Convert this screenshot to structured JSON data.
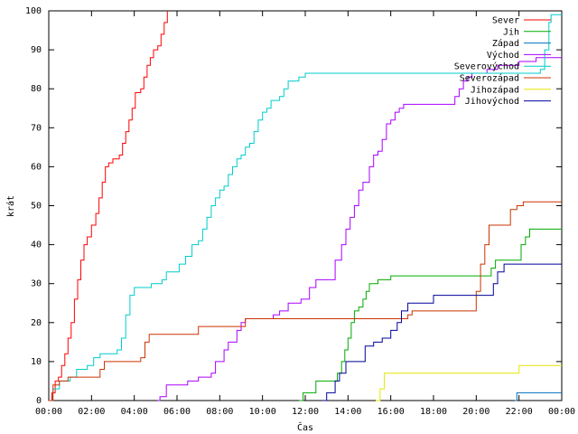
{
  "chart_data": {
    "type": "line",
    "title": "",
    "xlabel": "Čas",
    "ylabel": "krát",
    "xlim": [
      "00:00",
      "24:00"
    ],
    "ylim": [
      0,
      100
    ],
    "x_ticks": [
      "00:00",
      "02:00",
      "04:00",
      "06:00",
      "08:00",
      "10:00",
      "12:00",
      "14:00",
      "16:00",
      "18:00",
      "20:00",
      "22:00",
      "00:00"
    ],
    "y_ticks": [
      0,
      10,
      20,
      30,
      40,
      50,
      60,
      70,
      80,
      90,
      100
    ],
    "grid": false,
    "legend_position": "top-right",
    "series": [
      {
        "name": "Sever",
        "color": "#ff0000",
        "points": [
          [
            0.0,
            0
          ],
          [
            0.15,
            2
          ],
          [
            0.3,
            5
          ],
          [
            0.45,
            6
          ],
          [
            0.6,
            9
          ],
          [
            0.75,
            12
          ],
          [
            0.9,
            16
          ],
          [
            1.05,
            20
          ],
          [
            1.2,
            26
          ],
          [
            1.35,
            31
          ],
          [
            1.5,
            36
          ],
          [
            1.65,
            40
          ],
          [
            1.8,
            42
          ],
          [
            2.0,
            45
          ],
          [
            2.2,
            48
          ],
          [
            2.35,
            52
          ],
          [
            2.5,
            56
          ],
          [
            2.65,
            60
          ],
          [
            2.8,
            61
          ],
          [
            3.0,
            62
          ],
          [
            3.3,
            63
          ],
          [
            3.45,
            66
          ],
          [
            3.6,
            69
          ],
          [
            3.75,
            72
          ],
          [
            3.9,
            75
          ],
          [
            4.05,
            79
          ],
          [
            4.3,
            80
          ],
          [
            4.45,
            83
          ],
          [
            4.6,
            86
          ],
          [
            4.75,
            88
          ],
          [
            4.9,
            90
          ],
          [
            5.1,
            91
          ],
          [
            5.25,
            94
          ],
          [
            5.4,
            97
          ],
          [
            5.55,
            100
          ]
        ]
      },
      {
        "name": "Jih",
        "color": "#00aa00",
        "points": [
          [
            11.7,
            0
          ],
          [
            11.9,
            2
          ],
          [
            12.3,
            2
          ],
          [
            12.5,
            5
          ],
          [
            13.3,
            5
          ],
          [
            13.5,
            7
          ],
          [
            13.7,
            10
          ],
          [
            13.85,
            13
          ],
          [
            14.0,
            16
          ],
          [
            14.15,
            20
          ],
          [
            14.3,
            23
          ],
          [
            14.5,
            24
          ],
          [
            14.7,
            26
          ],
          [
            14.85,
            28
          ],
          [
            15.0,
            30
          ],
          [
            15.4,
            31
          ],
          [
            15.7,
            31
          ],
          [
            16.0,
            32
          ],
          [
            20.5,
            32
          ],
          [
            20.7,
            34
          ],
          [
            20.9,
            36
          ],
          [
            21.9,
            36
          ],
          [
            22.1,
            40
          ],
          [
            22.3,
            42
          ],
          [
            22.5,
            44
          ],
          [
            24.0,
            44
          ]
        ]
      },
      {
        "name": "Západ",
        "color": "#0070c0",
        "points": [
          [
            21.8,
            0
          ],
          [
            21.9,
            2
          ],
          [
            24.0,
            2
          ]
        ]
      },
      {
        "name": "Východ",
        "color": "#aa00ff",
        "points": [
          [
            5.1,
            0
          ],
          [
            5.2,
            1
          ],
          [
            5.5,
            4
          ],
          [
            6.5,
            5
          ],
          [
            7.0,
            6
          ],
          [
            7.6,
            7
          ],
          [
            7.8,
            10
          ],
          [
            8.2,
            13
          ],
          [
            8.4,
            15
          ],
          [
            8.8,
            18
          ],
          [
            9.0,
            20
          ],
          [
            9.2,
            21
          ],
          [
            10.5,
            22
          ],
          [
            10.8,
            23
          ],
          [
            11.2,
            25
          ],
          [
            11.8,
            26
          ],
          [
            12.2,
            29
          ],
          [
            12.5,
            31
          ],
          [
            13.2,
            31
          ],
          [
            13.4,
            36
          ],
          [
            13.7,
            40
          ],
          [
            13.9,
            44
          ],
          [
            14.1,
            47
          ],
          [
            14.3,
            50
          ],
          [
            14.5,
            54
          ],
          [
            14.7,
            56
          ],
          [
            15.0,
            60
          ],
          [
            15.2,
            63
          ],
          [
            15.4,
            64
          ],
          [
            15.6,
            67
          ],
          [
            15.8,
            71
          ],
          [
            16.0,
            72
          ],
          [
            16.2,
            74
          ],
          [
            16.4,
            75
          ],
          [
            16.6,
            76
          ],
          [
            18.8,
            76
          ],
          [
            19.0,
            78
          ],
          [
            19.2,
            80
          ],
          [
            19.4,
            82
          ],
          [
            19.6,
            83
          ],
          [
            19.8,
            84
          ],
          [
            20.5,
            85
          ],
          [
            21.0,
            86
          ],
          [
            22.0,
            87
          ],
          [
            22.8,
            88
          ],
          [
            24.0,
            88
          ]
        ]
      },
      {
        "name": "Severovýchod",
        "color": "#00cccc",
        "points": [
          [
            0.0,
            0
          ],
          [
            0.2,
            3
          ],
          [
            0.5,
            5
          ],
          [
            1.0,
            6
          ],
          [
            1.3,
            8
          ],
          [
            1.8,
            9
          ],
          [
            2.1,
            11
          ],
          [
            2.4,
            12
          ],
          [
            3.2,
            13
          ],
          [
            3.4,
            16
          ],
          [
            3.6,
            22
          ],
          [
            3.8,
            27
          ],
          [
            4.0,
            29
          ],
          [
            4.8,
            30
          ],
          [
            5.3,
            31
          ],
          [
            5.5,
            33
          ],
          [
            5.8,
            33
          ],
          [
            6.1,
            35
          ],
          [
            6.4,
            37
          ],
          [
            6.7,
            40
          ],
          [
            7.0,
            41
          ],
          [
            7.2,
            44
          ],
          [
            7.4,
            47
          ],
          [
            7.6,
            50
          ],
          [
            7.8,
            52
          ],
          [
            8.0,
            54
          ],
          [
            8.2,
            55
          ],
          [
            8.4,
            58
          ],
          [
            8.6,
            60
          ],
          [
            8.8,
            62
          ],
          [
            9.0,
            63
          ],
          [
            9.2,
            65
          ],
          [
            9.4,
            66
          ],
          [
            9.6,
            69
          ],
          [
            9.8,
            72
          ],
          [
            10.0,
            74
          ],
          [
            10.2,
            75
          ],
          [
            10.4,
            77
          ],
          [
            10.8,
            78
          ],
          [
            11.0,
            80
          ],
          [
            11.2,
            82
          ],
          [
            11.7,
            83
          ],
          [
            12.0,
            84
          ],
          [
            14.0,
            84
          ],
          [
            22.5,
            84
          ],
          [
            23.0,
            85
          ],
          [
            23.2,
            90
          ],
          [
            23.4,
            97
          ],
          [
            23.5,
            99
          ],
          [
            24.0,
            99
          ]
        ]
      },
      {
        "name": "Severozápad",
        "color": "#cc3300",
        "points": [
          [
            0.0,
            0
          ],
          [
            0.2,
            4
          ],
          [
            0.5,
            5
          ],
          [
            0.9,
            6
          ],
          [
            2.4,
            8
          ],
          [
            2.6,
            10
          ],
          [
            4.3,
            11
          ],
          [
            4.5,
            15
          ],
          [
            4.7,
            17
          ],
          [
            6.8,
            17
          ],
          [
            7.0,
            19
          ],
          [
            9.0,
            19
          ],
          [
            9.2,
            21
          ],
          [
            12.0,
            21
          ],
          [
            16.6,
            21
          ],
          [
            16.8,
            22
          ],
          [
            17.0,
            23
          ],
          [
            19.8,
            23
          ],
          [
            20.0,
            28
          ],
          [
            20.2,
            35
          ],
          [
            20.4,
            40
          ],
          [
            20.6,
            45
          ],
          [
            21.4,
            45
          ],
          [
            21.6,
            49
          ],
          [
            21.9,
            50
          ],
          [
            22.2,
            51
          ],
          [
            24.0,
            51
          ]
        ]
      },
      {
        "name": "Jihozápad",
        "color": "#e6e600",
        "points": [
          [
            15.3,
            0
          ],
          [
            15.5,
            3
          ],
          [
            15.7,
            7
          ],
          [
            21.8,
            7
          ],
          [
            22.0,
            9
          ],
          [
            24.0,
            9
          ]
        ]
      },
      {
        "name": "Jihovýchod",
        "color": "#000099",
        "points": [
          [
            12.8,
            0
          ],
          [
            13.0,
            2
          ],
          [
            13.4,
            5
          ],
          [
            13.6,
            7
          ],
          [
            13.9,
            10
          ],
          [
            14.6,
            10
          ],
          [
            14.8,
            14
          ],
          [
            15.2,
            15
          ],
          [
            15.6,
            16
          ],
          [
            16.0,
            18
          ],
          [
            16.3,
            20
          ],
          [
            16.5,
            23
          ],
          [
            16.8,
            25
          ],
          [
            17.7,
            25
          ],
          [
            18.0,
            27
          ],
          [
            20.6,
            27
          ],
          [
            20.8,
            30
          ],
          [
            21.0,
            33
          ],
          [
            21.3,
            35
          ],
          [
            24.0,
            35
          ]
        ]
      }
    ]
  }
}
